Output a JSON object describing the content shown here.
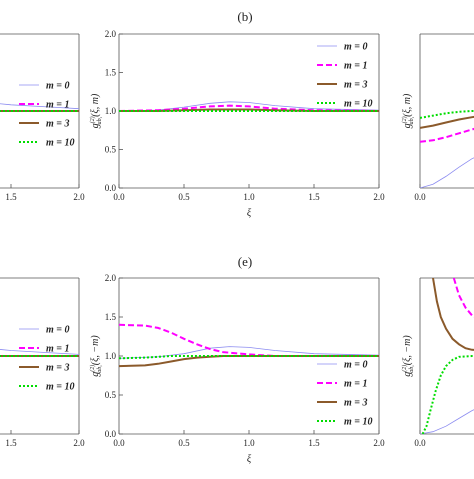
{
  "panel_labels": [
    "(b)",
    "(e)"
  ],
  "chart_data": [
    {
      "type": "line",
      "panel": "a-partial",
      "xlim": [
        0,
        2.0
      ],
      "ylim": [
        0,
        2.0
      ],
      "xticks": [
        "1.5",
        "2.0"
      ],
      "yticks": [],
      "legend": "right",
      "series": [
        {
          "name": "m=0",
          "color": "#8b8bf0",
          "dash": "solid",
          "x": [
            0,
            0.5,
            1.0,
            1.2,
            1.5,
            1.8,
            2.0
          ],
          "y": [
            1.3,
            1.25,
            1.18,
            1.13,
            1.08,
            1.05,
            1.03
          ]
        },
        {
          "name": "m=1",
          "color": "#ff00ff",
          "dash": "dash",
          "x": [
            0,
            1.0,
            2.0
          ],
          "y": [
            1.0,
            1.0,
            1.0
          ]
        },
        {
          "name": "m=3",
          "color": "#8b5a2b",
          "dash": "solid",
          "x": [
            0,
            1.0,
            2.0
          ],
          "y": [
            1.0,
            1.0,
            1.0
          ]
        },
        {
          "name": "m=10",
          "color": "#00dd00",
          "dash": "dot",
          "x": [
            0,
            1.0,
            2.0
          ],
          "y": [
            1.0,
            1.0,
            1.0
          ]
        }
      ]
    },
    {
      "type": "line",
      "panel": "b",
      "xlim": [
        0,
        2.0
      ],
      "ylim": [
        0,
        2.0
      ],
      "xticks": [
        "0.0",
        "0.5",
        "1.0",
        "1.5",
        "2.0"
      ],
      "yticks": [
        "0.0",
        "0.5",
        "1.0",
        "1.5",
        "2.0"
      ],
      "xlabel": "ξ",
      "ylabel": "g",
      "ylabel_sup": "(2)",
      "ylabel_sub": "ab,",
      "ylabel_args": "(ξ, m)",
      "legend": "top-right",
      "series": [
        {
          "name": "m=0",
          "color": "#8b8bf0",
          "dash": "solid",
          "x": [
            0,
            0.3,
            0.5,
            0.7,
            0.85,
            1.0,
            1.2,
            1.5,
            2.0
          ],
          "y": [
            1.0,
            1.01,
            1.05,
            1.1,
            1.12,
            1.11,
            1.07,
            1.03,
            1.01
          ]
        },
        {
          "name": "m=1",
          "color": "#ff00ff",
          "dash": "dash",
          "x": [
            0,
            0.3,
            0.5,
            0.7,
            0.85,
            1.0,
            1.2,
            1.5,
            2.0
          ],
          "y": [
            1.0,
            1.01,
            1.03,
            1.06,
            1.07,
            1.06,
            1.03,
            1.01,
            1.0
          ]
        },
        {
          "name": "m=3",
          "color": "#8b5a2b",
          "dash": "solid",
          "x": [
            0,
            0.3,
            0.5,
            0.7,
            0.85,
            1.0,
            1.2,
            1.5,
            2.0
          ],
          "y": [
            1.0,
            1.0,
            1.01,
            1.02,
            1.02,
            1.02,
            1.01,
            1.0,
            1.0
          ]
        },
        {
          "name": "m=10",
          "color": "#00dd00",
          "dash": "dot",
          "x": [
            0,
            1.0,
            2.0
          ],
          "y": [
            1.0,
            1.0,
            1.0
          ]
        }
      ]
    },
    {
      "type": "line",
      "panel": "c-partial",
      "xlim": [
        0,
        2.0
      ],
      "ylim": [
        0,
        2.0
      ],
      "xticks": [
        "0.0",
        "0.5"
      ],
      "yticks": [],
      "ylabel": "g",
      "ylabel_sup": "(2)",
      "ylabel_sub": "ab,",
      "ylabel_args": "(ξ, m)",
      "series": [
        {
          "name": "m=0",
          "color": "#8b8bf0",
          "dash": "solid",
          "x": [
            0,
            0.1,
            0.2,
            0.3,
            0.4,
            0.5,
            0.6
          ],
          "y": [
            0.0,
            0.05,
            0.15,
            0.27,
            0.38,
            0.46,
            0.52
          ]
        },
        {
          "name": "m=1",
          "color": "#ff00ff",
          "dash": "dash",
          "x": [
            0,
            0.1,
            0.2,
            0.3,
            0.4,
            0.5,
            0.6
          ],
          "y": [
            0.6,
            0.62,
            0.66,
            0.71,
            0.76,
            0.81,
            0.86
          ]
        },
        {
          "name": "m=3",
          "color": "#8b5a2b",
          "dash": "solid",
          "x": [
            0,
            0.1,
            0.2,
            0.3,
            0.4,
            0.5,
            0.6
          ],
          "y": [
            0.78,
            0.81,
            0.85,
            0.89,
            0.92,
            0.95,
            0.97
          ]
        },
        {
          "name": "m=10",
          "color": "#00dd00",
          "dash": "dot",
          "x": [
            0,
            0.1,
            0.2,
            0.3,
            0.4,
            0.5,
            0.6
          ],
          "y": [
            0.91,
            0.94,
            0.97,
            0.99,
            1.0,
            1.0,
            1.0
          ]
        }
      ]
    },
    {
      "type": "line",
      "panel": "d-partial",
      "xlim": [
        0,
        2.0
      ],
      "ylim": [
        0,
        2.0
      ],
      "xticks": [
        "1.5",
        "2.0"
      ],
      "yticks": [],
      "legend": "right",
      "series": [
        {
          "name": "m=0",
          "color": "#8b8bf0",
          "dash": "solid",
          "x": [
            0,
            0.5,
            1.0,
            1.2,
            1.5,
            1.8,
            2.0
          ],
          "y": [
            1.3,
            1.25,
            1.18,
            1.12,
            1.07,
            1.04,
            1.02
          ]
        },
        {
          "name": "m=1",
          "color": "#ff00ff",
          "dash": "dash",
          "x": [
            0,
            1.0,
            2.0
          ],
          "y": [
            1.0,
            1.0,
            1.0
          ]
        },
        {
          "name": "m=3",
          "color": "#8b5a2b",
          "dash": "solid",
          "x": [
            0,
            1.0,
            2.0
          ],
          "y": [
            1.0,
            1.0,
            1.0
          ]
        },
        {
          "name": "m=10",
          "color": "#00dd00",
          "dash": "dot",
          "x": [
            0,
            1.0,
            2.0
          ],
          "y": [
            1.0,
            1.0,
            1.0
          ]
        }
      ]
    },
    {
      "type": "line",
      "panel": "e",
      "xlim": [
        0,
        2.0
      ],
      "ylim": [
        0,
        2.0
      ],
      "xticks": [
        "0.0",
        "0.5",
        "1.0",
        "1.5",
        "2.0"
      ],
      "yticks": [
        "0.0",
        "0.5",
        "1.0",
        "1.5",
        "2.0"
      ],
      "xlabel": "ξ",
      "ylabel": "g",
      "ylabel_sup": "(2)",
      "ylabel_sub": "ab,",
      "ylabel_args": "(ξ, −m)",
      "legend": "bottom-right",
      "series": [
        {
          "name": "m=0",
          "color": "#8b8bf0",
          "dash": "solid",
          "x": [
            0,
            0.3,
            0.5,
            0.7,
            0.85,
            1.0,
            1.2,
            1.5,
            2.0
          ],
          "y": [
            0.97,
            0.99,
            1.03,
            1.1,
            1.12,
            1.11,
            1.07,
            1.03,
            1.01
          ]
        },
        {
          "name": "m=1",
          "color": "#ff00ff",
          "dash": "dash",
          "x": [
            0,
            0.2,
            0.3,
            0.4,
            0.5,
            0.6,
            0.7,
            0.8,
            1.0,
            1.2,
            1.5,
            2.0
          ],
          "y": [
            1.4,
            1.39,
            1.36,
            1.3,
            1.22,
            1.15,
            1.09,
            1.05,
            1.02,
            1.0,
            1.0,
            1.0
          ]
        },
        {
          "name": "m=3",
          "color": "#8b5a2b",
          "dash": "solid",
          "x": [
            0,
            0.2,
            0.3,
            0.4,
            0.5,
            0.6,
            0.7,
            0.8,
            1.0,
            1.5,
            2.0
          ],
          "y": [
            0.87,
            0.88,
            0.9,
            0.93,
            0.96,
            0.98,
            0.99,
            1.0,
            1.0,
            1.0,
            1.0
          ]
        },
        {
          "name": "m=10",
          "color": "#00dd00",
          "dash": "dot",
          "x": [
            0,
            0.2,
            0.3,
            0.4,
            0.5,
            0.6,
            0.8,
            1.0,
            2.0
          ],
          "y": [
            0.97,
            0.98,
            0.99,
            1.0,
            1.0,
            1.0,
            1.0,
            1.0,
            1.0
          ]
        }
      ]
    },
    {
      "type": "line",
      "panel": "f-partial",
      "xlim": [
        0,
        2.0
      ],
      "ylim": [
        0,
        2.0
      ],
      "xticks": [
        "0.0",
        "0.5"
      ],
      "yticks": [],
      "ylabel": "g",
      "ylabel_sup": "(2)",
      "ylabel_sub": "ab,",
      "ylabel_args": "(ξ, −m)",
      "series": [
        {
          "name": "m=0",
          "color": "#8b8bf0",
          "dash": "solid",
          "x": [
            0,
            0.1,
            0.2,
            0.3,
            0.4,
            0.5,
            0.6
          ],
          "y": [
            0.0,
            0.03,
            0.1,
            0.2,
            0.3,
            0.38,
            0.45
          ]
        },
        {
          "name": "m=1",
          "color": "#ff00ff",
          "dash": "dash",
          "x": [
            0.26,
            0.3,
            0.35,
            0.4,
            0.45,
            0.5,
            0.55,
            0.6
          ],
          "y": [
            2.0,
            1.78,
            1.62,
            1.52,
            1.46,
            1.42,
            1.4,
            1.39
          ]
        },
        {
          "name": "m=3",
          "color": "#8b5a2b",
          "dash": "solid",
          "x": [
            0.1,
            0.13,
            0.16,
            0.2,
            0.25,
            0.3,
            0.35,
            0.4,
            0.5,
            0.6
          ],
          "y": [
            2.0,
            1.7,
            1.5,
            1.35,
            1.22,
            1.15,
            1.1,
            1.08,
            1.07,
            1.07
          ]
        },
        {
          "name": "m=10",
          "color": "#00dd00",
          "dash": "dot",
          "x": [
            0.02,
            0.05,
            0.08,
            0.12,
            0.16,
            0.2,
            0.25,
            0.3,
            0.4,
            0.6
          ],
          "y": [
            0.0,
            0.1,
            0.3,
            0.55,
            0.75,
            0.87,
            0.95,
            0.99,
            1.0,
            1.0
          ]
        }
      ]
    }
  ]
}
